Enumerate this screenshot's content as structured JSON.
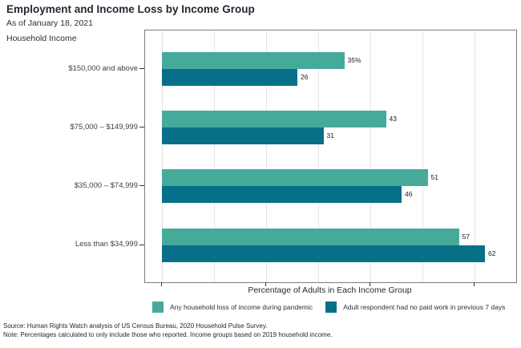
{
  "title": "Employment and Income Loss by Income Group",
  "subtitle": "As of January 18, 2021",
  "y_axis_title": "Household Income",
  "x_axis_title": "Percentage of Adults in Each Income Group",
  "source": "Source: Human Rights Watch analysis of US Census Bureau, 2020 Household Pulse Survey.",
  "note": "Note: Percentages calculated to only include those who reported. Income groups based on 2019 household income.",
  "colors": {
    "any_income_loss": "#46aa9b",
    "no_paid_work": "#077088",
    "gridline": "#e4e4e4",
    "frame": "#7d7d7d",
    "title_text": "#232833"
  },
  "chart_data": {
    "type": "bar",
    "orientation": "horizontal",
    "title": "Employment and Income Loss by Income Group",
    "subtitle": "As of January 18, 2021",
    "xlabel": "Percentage of Adults in Each Income Group",
    "ylabel": "Household Income",
    "categories": [
      "$150,000 and above",
      "$75,000 – $149,999",
      "$35,000 – $74,999",
      "Less than $34,999"
    ],
    "series": [
      {
        "name": "Any household loss of income during pandemic",
        "color": "#46aa9b",
        "values": [
          35,
          43,
          51,
          57
        ],
        "value_labels": [
          "35%",
          "43",
          "51",
          "57"
        ]
      },
      {
        "name": "Adult respondent had no paid work in previous 7 days",
        "color": "#077088",
        "values": [
          26,
          31,
          46,
          62
        ],
        "value_labels": [
          "26",
          "31",
          "46",
          "62"
        ]
      }
    ],
    "xlim": [
      -3.2,
      68
    ],
    "x_ticks": [
      0,
      20,
      40,
      60
    ],
    "x_tick_labels_shown": false,
    "gridlines": [
      0,
      10,
      20,
      30,
      40,
      50,
      60
    ],
    "grid": true,
    "legend_position": "bottom"
  }
}
